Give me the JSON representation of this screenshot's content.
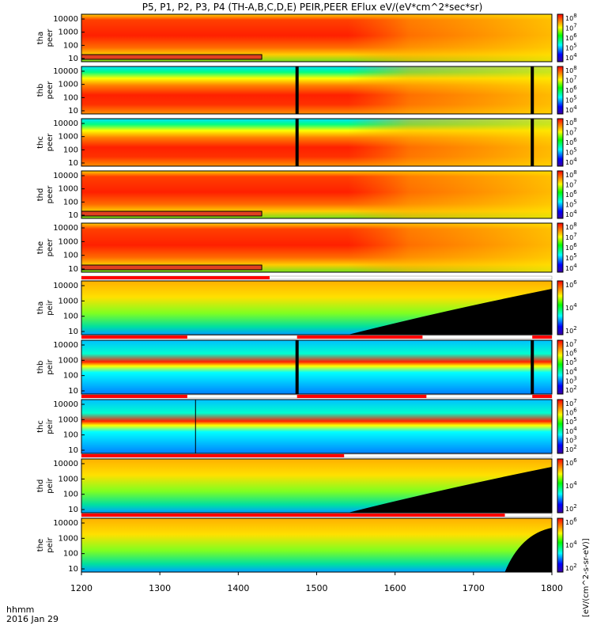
{
  "title": "P5, P1, P2, P3, P4 (TH-A,B,C,D,E) PEIR,PEER EFlux eV/(eV*cm^2*sec*sr)",
  "x_axis": {
    "label_line1": "hhmm",
    "label_line2": "2016 Jan 29",
    "ticks": [
      "1200",
      "1300",
      "1400",
      "1500",
      "1600",
      "1700",
      "1800"
    ]
  },
  "colorbar_label": "[eV/(cm^2-s-sr-eV)]",
  "chart_data": {
    "type": "heatmap",
    "title": "P5, P1, P2, P3, P4 (TH-A,B,C,D,E) PEIR,PEER EFlux eV/(eV*cm^2*sec*sr)",
    "x_range": [
      1200,
      1800
    ],
    "y_scale": "log",
    "y_ticks": [
      "10000",
      "1000",
      "100",
      "10"
    ],
    "colormap": [
      "#0000ff",
      "#00ffff",
      "#00ff00",
      "#ffff00",
      "#ff0000"
    ],
    "panels": [
      {
        "id": "tha-peer",
        "label_top": "tha",
        "label_bottom": "peer",
        "cbar_ticks": [
          "10^8",
          "10^7",
          "10^6",
          "10^5",
          "10^4"
        ]
      },
      {
        "id": "thb-peer",
        "label_top": "thb",
        "label_bottom": "peer",
        "cbar_ticks": [
          "10^8",
          "10^7",
          "10^6",
          "10^5",
          "10^4"
        ]
      },
      {
        "id": "thc-peer",
        "label_top": "thc",
        "label_bottom": "peer",
        "cbar_ticks": [
          "10^8",
          "10^7",
          "10^6",
          "10^5",
          "10^4"
        ]
      },
      {
        "id": "thd-peer",
        "label_top": "thd",
        "label_bottom": "peer",
        "cbar_ticks": [
          "10^8",
          "10^7",
          "10^6",
          "10^5",
          "10^4"
        ]
      },
      {
        "id": "the-peer",
        "label_top": "the",
        "label_bottom": "peer",
        "cbar_ticks": [
          "10^8",
          "10^7",
          "10^6",
          "10^5",
          "10^4"
        ]
      },
      {
        "id": "tha-peir",
        "label_top": "tha",
        "label_bottom": "peir",
        "cbar_ticks": [
          "10^6",
          "10^4",
          "10^2"
        ]
      },
      {
        "id": "thb-peir",
        "label_top": "thb",
        "label_bottom": "peir",
        "cbar_ticks": [
          "10^7",
          "10^6",
          "10^5",
          "10^4",
          "10^3",
          "10^2"
        ]
      },
      {
        "id": "thc-peir",
        "label_top": "thc",
        "label_bottom": "peir",
        "cbar_ticks": [
          "10^7",
          "10^6",
          "10^5",
          "10^4",
          "10^3",
          "10^2"
        ]
      },
      {
        "id": "thd-peir",
        "label_top": "thd",
        "label_bottom": "peir",
        "cbar_ticks": [
          "10^6",
          "10^4",
          "10^2"
        ]
      },
      {
        "id": "the-peir",
        "label_top": "the",
        "label_bottom": "peir",
        "cbar_ticks": [
          "10^6",
          "10^4",
          "10^2"
        ]
      }
    ]
  }
}
